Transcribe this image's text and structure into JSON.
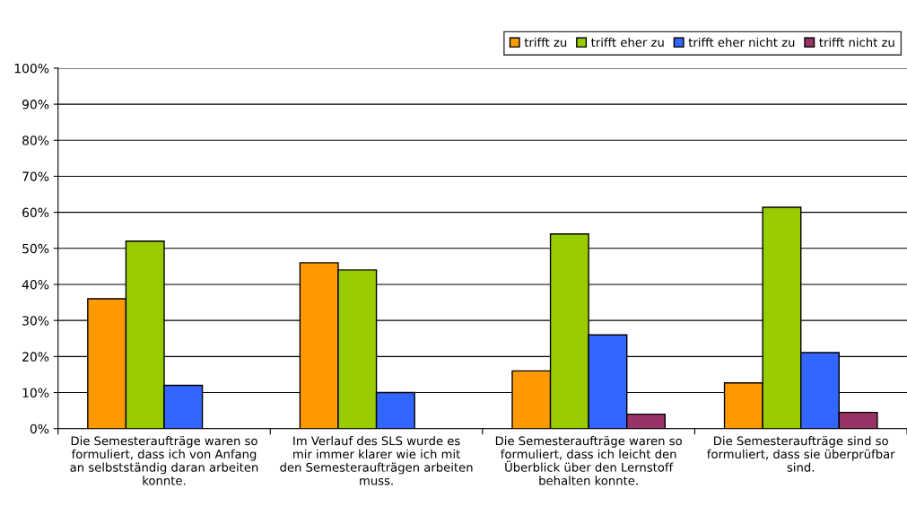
{
  "chart_data": {
    "type": "bar",
    "categories": [
      "Die Semesteraufträge waren so\nformuliert, dass ich von Anfang\nan selbstständig daran arbeiten\nkonnte.",
      "Im Verlauf des SLS wurde es\nmir immer klarer wie ich mit\nden Semesteraufträgen arbeiten\nmuss.",
      "Die Semesteraufträge waren so\nformuliert, dass ich leicht den\nÜberblick über den Lernstoff\nbehalten konnte.",
      "Die Semesteraufträge sind so\nformuliert, dass sie überprüfbar\nsind."
    ],
    "series": [
      {
        "name": "trifft zu",
        "color": "#ff9900",
        "values": [
          36,
          46,
          16,
          12.7
        ]
      },
      {
        "name": "trifft eher zu",
        "color": "#99cc00",
        "values": [
          52,
          44,
          54,
          61.4
        ]
      },
      {
        "name": "trifft eher nicht zu",
        "color": "#3366ff",
        "values": [
          12,
          10,
          26,
          21.1
        ]
      },
      {
        "name": "trifft nicht zu",
        "color": "#993366",
        "values": [
          null,
          null,
          4,
          4.5
        ]
      }
    ],
    "ylim": [
      0,
      100
    ],
    "yticks": [
      {
        "value": 0,
        "label": "0%"
      },
      {
        "value": 10,
        "label": "10%"
      },
      {
        "value": 20,
        "label": "20%"
      },
      {
        "value": 30,
        "label": "30%"
      },
      {
        "value": 40,
        "label": "40%"
      },
      {
        "value": 50,
        "label": "50%"
      },
      {
        "value": 60,
        "label": "60%"
      },
      {
        "value": 70,
        "label": "70%"
      },
      {
        "value": 80,
        "label": "80%"
      },
      {
        "value": 90,
        "label": "90%"
      },
      {
        "value": 100,
        "label": "100%"
      }
    ],
    "grid": "y",
    "legend": "top right"
  }
}
